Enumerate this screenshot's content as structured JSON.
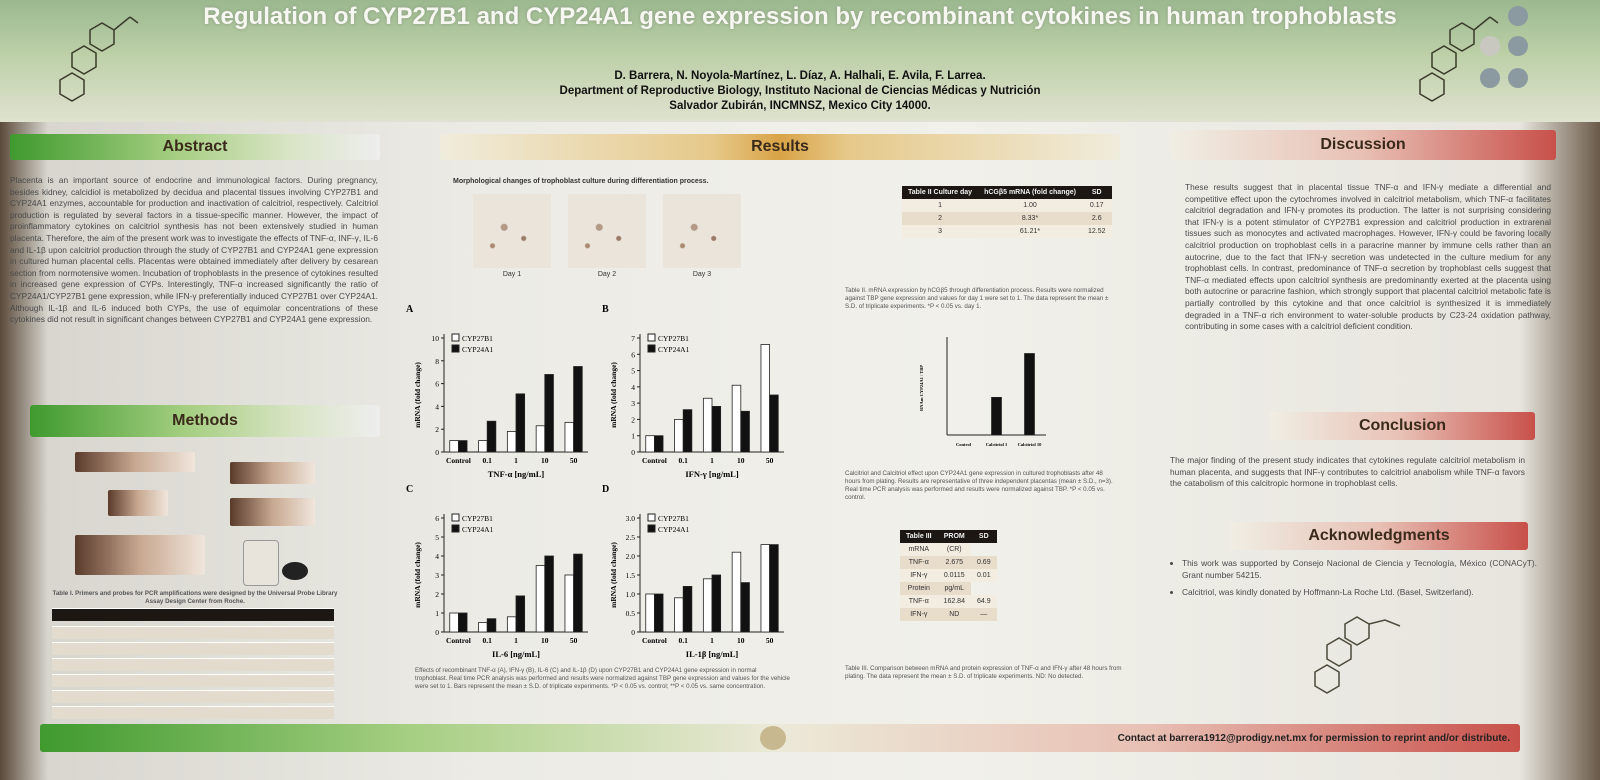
{
  "header": {
    "title": "Regulation of CYP27B1 and CYP24A1 gene expression by recombinant cytokines in human trophoblasts",
    "authors": "D. Barrera, N. Noyola-Martínez, L. Díaz, A. Halhali, E. Avila, F. Larrea.",
    "affiliation": [
      "Department of Reproductive Biology, Instituto Nacional de Ciencias Médicas y Nutrición",
      "Salvador Zubirán, INCMNSZ, Mexico City 14000."
    ]
  },
  "abstract": {
    "title": "Abstract",
    "text": "Placenta is an important source of endocrine and immunological factors. During pregnancy, besides kidney, calcidiol is metabolized by decidua and placental tissues involving CYP27B1 and CYP24A1 enzymes, accountable for production and inactivation of calcitriol, respectively. Calcitriol production is regulated by several factors in a tissue-specific manner. However, the impact of proinflammatory cytokines on calcitriol synthesis has not been extensively studied in human placenta. Therefore, the aim of the present work was to investigate the effects of TNF-α, INF-γ, IL-6 and IL-1β upon calcitriol production through the study of CYP27B1 and CYP24A1 gene expression in cultured human placental cells. Placentas were obtained immediately after delivery by cesarean section from normotensive women. Incubation of trophoblasts in the presence of cytokines resulted in increased gene expression of CYPs. Interestingly, TNF-α increased significantly the ratio of CYP24A1/CYP27B1 gene expression, while IFN-γ preferentially induced CYP27B1 over CYP24A1. Although IL-1β and IL-6 induced both CYPs, the use of equimolar concentrations of these cytokines did not result in significant changes between CYP27B1 and CYP24A1 gene expression."
  },
  "methods": {
    "title": "Methods",
    "table_caption": "Table I. Primers and probes for PCR amplifications were designed by the Universal Probe Library Assay Design Center from Roche."
  },
  "results": {
    "title": "Results",
    "morphology": {
      "caption": "Morphological changes of trophoblast culture during differentiation process.",
      "days": [
        "Day 1",
        "Day 2",
        "Day 3"
      ]
    },
    "charts": [
      {
        "type": "bar",
        "label": "A",
        "ylabel": "mRNA (fold change)",
        "xlabel": "TNF-α [ng/mL]",
        "categories": [
          "Control",
          "0.1",
          "1",
          "10",
          "50"
        ],
        "ylim": [
          0,
          10
        ],
        "yticks": [
          0,
          2,
          4,
          6,
          8,
          10
        ],
        "series": [
          {
            "name": "CYP27B1",
            "color": "#ffffff",
            "values": [
              1,
              1,
              1.8,
              2.3,
              2.6
            ]
          },
          {
            "name": "CYP24A1",
            "color": "#111111",
            "values": [
              1,
              2.7,
              5.1,
              6.8,
              7.5
            ]
          }
        ]
      },
      {
        "type": "bar",
        "label": "B",
        "ylabel": "mRNA (fold change)",
        "xlabel": "IFN-γ [ng/mL]",
        "categories": [
          "Control",
          "0.1",
          "1",
          "10",
          "50"
        ],
        "ylim": [
          0,
          7
        ],
        "yticks": [
          0,
          1,
          2,
          3,
          4,
          5,
          6,
          7
        ],
        "series": [
          {
            "name": "CYP27B1",
            "color": "#ffffff",
            "values": [
              1,
              2,
              3.3,
              4.1,
              6.6
            ]
          },
          {
            "name": "CYP24A1",
            "color": "#111111",
            "values": [
              1,
              2.6,
              2.8,
              2.5,
              3.5
            ]
          }
        ]
      },
      {
        "type": "bar",
        "label": "C",
        "ylabel": "mRNA (fold change)",
        "xlabel": "IL-6 [ng/mL]",
        "categories": [
          "Control",
          "0.1",
          "1",
          "10",
          "50"
        ],
        "ylim": [
          0,
          6
        ],
        "yticks": [
          0,
          1,
          2,
          3,
          4,
          5,
          6
        ],
        "series": [
          {
            "name": "CYP27B1",
            "color": "#ffffff",
            "values": [
              1,
              0.5,
              0.8,
              3.5,
              3.0
            ]
          },
          {
            "name": "CYP24A1",
            "color": "#111111",
            "values": [
              1,
              0.7,
              1.9,
              4.0,
              4.1
            ]
          }
        ]
      },
      {
        "type": "bar",
        "label": "D",
        "ylabel": "mRNA (fold change)",
        "xlabel": "IL-1β [ng/mL]",
        "categories": [
          "Control",
          "0.1",
          "1",
          "10",
          "50"
        ],
        "ylim": [
          0,
          3
        ],
        "yticks": [
          0,
          0.5,
          {
            "value": 1,
            "label": "1.0"
          },
          1.5,
          {
            "value": 2,
            "label": "2.0"
          },
          2.5,
          {
            "value": 3,
            "label": "3.0"
          }
        ],
        "series": [
          {
            "name": "CYP27B1",
            "color": "#ffffff",
            "values": [
              1,
              0.9,
              1.4,
              2.1,
              2.3
            ]
          },
          {
            "name": "CYP24A1",
            "color": "#111111",
            "values": [
              1,
              1.2,
              1.5,
              1.3,
              2.3
            ]
          }
        ]
      }
    ],
    "figure_caption": "Effects of recombinant TNF-α (A), IFN-γ (B), IL-6 (C) and IL-1β (D) upon CYP27B1 and CYP24A1 gene expression in normal trophoblast. Real time PCR analysis was performed and results were normalized against TBP gene expression and values for the vehicle were set to 1. Bars represent the mean ± S.D. of triplicate experiments. *P < 0.05 vs. control; **P < 0.05 vs. same concentration.",
    "table2": {
      "header": [
        "Table II Culture day",
        "hCGβ5 mRNA (fold change)",
        "SD"
      ],
      "rows": [
        [
          "1",
          "1.00",
          "0.17"
        ],
        [
          "2",
          "8.33*",
          "2.6"
        ],
        [
          "3",
          "61.21*",
          "12.52"
        ]
      ],
      "caption": "Table II. mRNA expression by hCGβ5 through differentiation process. Results were normalized against TBP gene expression and values for day 1 were set to 1. The data represent the mean ± S.D. of triplicate experiments. *P < 0.05 vs. day 1."
    },
    "calcitriol_chart": {
      "type": "bar",
      "ylabel": "RNAm CYP24A1 / TBP",
      "categories": [
        "Control",
        "Calcitriol 1",
        "Calcitriol 10"
      ],
      "ylim": [
        0,
        6
      ],
      "series": [
        {
          "color": "#111111",
          "values": [
            0,
            2.4,
            5.2
          ]
        }
      ],
      "caption": "Calcitriol and Calcitriol effect upon CYP24A1 gene expression in cultured trophoblasts after 48 hours from plating. Results are representative of three independent placentas (mean ± S.D., n=3). Real time PCR analysis was performed and results were normalized against TBP. *P < 0.05 vs. control."
    },
    "table3": {
      "header": [
        "Table III",
        "PROM",
        "SD"
      ],
      "rows": [
        [
          "mRNA",
          "(CR)"
        ],
        [
          "TNF-α",
          "2.675",
          "0.69"
        ],
        [
          "IFN-γ",
          "0.0115",
          "0.01"
        ],
        [
          "Protein",
          "pg/mL"
        ],
        [
          "TNF-α",
          "162.84",
          "64.9"
        ],
        [
          "IFN-γ",
          "ND",
          "—"
        ]
      ],
      "caption": "Table III. Comparison between mRNA and protein expression of TNF-α and IFN-γ after 48 hours from plating. The data represent the mean ± S.D. of triplicate experiments. ND: No detected."
    }
  },
  "discussion": {
    "title": "Discussion",
    "text": "These results suggest that in placental tissue TNF-α and IFN-γ mediate a differential and competitive effect upon the cytochromes involved in calcitriol metabolism, which TNF-α facilitates calcitriol degradation and IFN-γ promotes its production. The latter is not surprising considering that IFN-γ is a potent stimulator of CYP27B1 expression and calcitriol production in extrarenal tissues such as monocytes and activated macrophages. However, IFN-γ could be favoring locally calcitriol production on trophoblast cells in a paracrine manner by immune cells rather than an autocrine, due to the fact that IFN-γ secretion was undetected in the culture medium for any trophoblast cells. In contrast, predominance of TNF-α secretion by trophoblast cells suggest that TNF-α mediated effects upon calcitriol synthesis are predominantly exerted at the placenta using both autocrine or paracrine fashion, which strongly support that placental calcitriol metabolic fate is partially controlled by this cytokine and that once calcitriol is synthesized it is immediately degraded in a TNF-α rich environment to water-soluble products by C23-24 oxidation pathway, contributing in some cases with a calcitriol deficient condition."
  },
  "conclusion": {
    "title": "Conclusion",
    "text": "The major finding of the present study indicates that cytokines regulate calcitriol metabolism in human placenta, and suggests that INF-γ contributes to calcitriol anabolism while TNF-α favors the catabolism of this calcitropic hormone in trophoblast cells."
  },
  "acknowledgments": {
    "title": "Acknowledgments",
    "items": [
      "This work was supported by Consejo Nacional de Ciencia y Tecnología, México (CONACyT). Grant number 54215.",
      "Calcitriol, was kindly donated by Hoffmann-La Roche Ltd. (Basel, Switzerland)."
    ]
  },
  "footer": {
    "contact": "Contact at barrera1912@prodigy.net.mx for permission to reprint and/or distribute."
  }
}
